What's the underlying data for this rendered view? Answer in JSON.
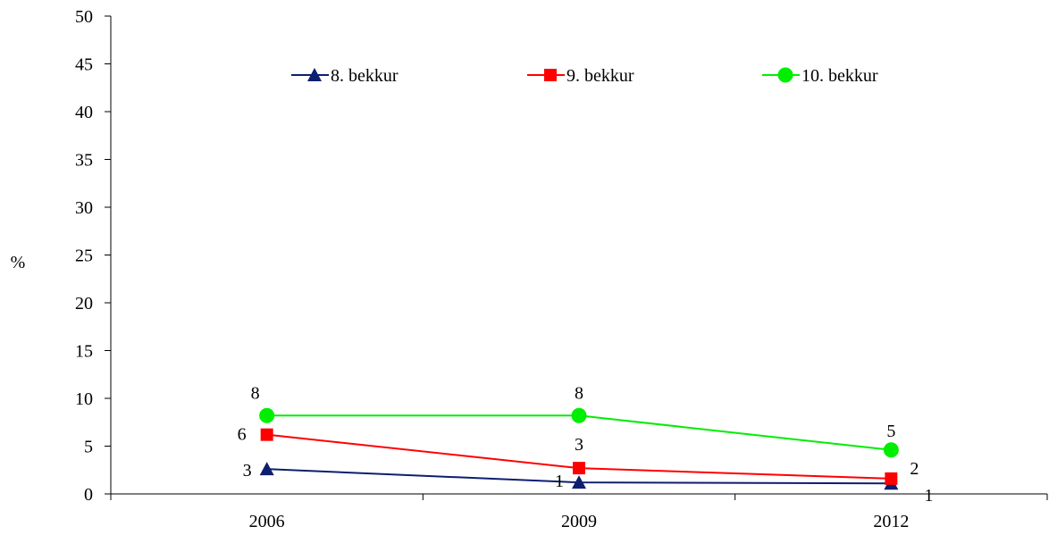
{
  "chart_data": {
    "type": "line",
    "title": "",
    "xlabel": "",
    "ylabel": "%",
    "categories": [
      "2006",
      "2009",
      "2012"
    ],
    "ylim": [
      0,
      50
    ],
    "yticks": [
      0,
      5,
      10,
      15,
      20,
      25,
      30,
      35,
      40,
      45,
      50
    ],
    "grid": false,
    "legend_position": "top",
    "series": [
      {
        "name": "8. bekkur",
        "color": "#0d1f6e",
        "marker": "triangle",
        "values": [
          2.6,
          1.2,
          1.1
        ],
        "labels": [
          "3",
          "1",
          "1"
        ]
      },
      {
        "name": "9. bekkur",
        "color": "#ff0000",
        "marker": "square",
        "values": [
          6.2,
          2.7,
          1.6
        ],
        "labels": [
          "6",
          "3",
          "2"
        ]
      },
      {
        "name": "10. bekkur",
        "color": "#00ee00",
        "marker": "circle",
        "values": [
          8.2,
          8.2,
          4.6
        ],
        "labels": [
          "8",
          "8",
          "5"
        ]
      }
    ]
  }
}
